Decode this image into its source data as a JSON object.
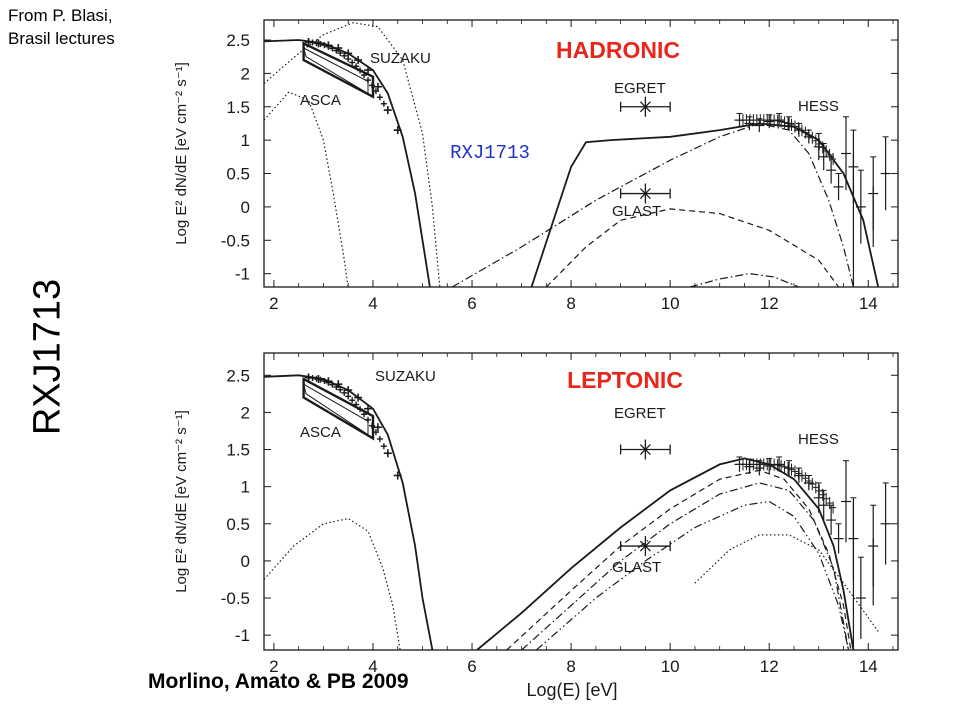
{
  "credit_top": "From P. Blasi,\nBrasil lectures",
  "side_title": "RXJ1713",
  "credit_bottom": "Morlino, Amato & PB 2009",
  "colors": {
    "title_red": "#e8261c",
    "label_blue": "#1f33c8",
    "ink": "#1a1a1a"
  },
  "chart_data": [
    {
      "type": "line",
      "title": "HADRONIC",
      "inset_label": "RXJ1713",
      "xlabel": "",
      "ylabel": "Log E² dN/dE  [eV cm⁻² s⁻¹]",
      "xlim": [
        1.8,
        14.6
      ],
      "ylim": [
        -1.2,
        2.8
      ],
      "x_ticks": [
        "2",
        "4",
        "6",
        "8",
        "10",
        "12",
        "14"
      ],
      "y_ticks": [
        "-1",
        "-0.5",
        "0",
        "0.5",
        "1",
        "1.5",
        "2",
        "2.5"
      ],
      "annotations": [
        "SUZAKU",
        "ASCA",
        "EGRET",
        "GLAST",
        "HESS"
      ],
      "series": [
        {
          "style": "solid",
          "points": [
            [
              1.8,
              2.48
            ],
            [
              2.5,
              2.5
            ],
            [
              3,
              2.45
            ],
            [
              3.5,
              2.3
            ],
            [
              4,
              2.05
            ],
            [
              4.3,
              1.7
            ],
            [
              4.6,
              1.05
            ],
            [
              4.85,
              0.2
            ],
            [
              5.0,
              -0.5
            ],
            [
              5.15,
              -1.2
            ]
          ]
        },
        {
          "style": "dotted",
          "points": [
            [
              1.8,
              1.3
            ],
            [
              2.3,
              1.72
            ],
            [
              2.7,
              1.6
            ],
            [
              3,
              1.0
            ],
            [
              3.2,
              0.2
            ],
            [
              3.4,
              -0.7
            ],
            [
              3.5,
              -1.2
            ]
          ]
        },
        {
          "style": "dotted",
          "points": [
            [
              1.8,
              1.85
            ],
            [
              2.5,
              2.3
            ],
            [
              3.0,
              2.58
            ],
            [
              3.6,
              2.76
            ],
            [
              4.1,
              2.7
            ],
            [
              4.6,
              2.2
            ],
            [
              5.0,
              1.1
            ],
            [
              5.2,
              0.0
            ],
            [
              5.35,
              -1.2
            ]
          ]
        },
        {
          "style": "solid",
          "points": [
            [
              7.2,
              -1.2
            ],
            [
              7.6,
              -0.3
            ],
            [
              8.0,
              0.6
            ],
            [
              8.3,
              0.97
            ],
            [
              8.8,
              1.0
            ],
            [
              10,
              1.05
            ],
            [
              11,
              1.15
            ],
            [
              11.8,
              1.25
            ],
            [
              12.5,
              1.2
            ],
            [
              13,
              1.0
            ],
            [
              13.5,
              0.5
            ],
            [
              13.9,
              -0.2
            ],
            [
              14.2,
              -1.2
            ]
          ]
        },
        {
          "style": "dashdot",
          "points": [
            [
              5.6,
              -1.2
            ],
            [
              7,
              -0.6
            ],
            [
              8.5,
              0.1
            ],
            [
              10,
              0.7
            ],
            [
              11,
              1.05
            ],
            [
              11.8,
              1.25
            ],
            [
              12.4,
              1.15
            ],
            [
              12.8,
              0.8
            ],
            [
              13.2,
              0.1
            ],
            [
              13.5,
              -0.6
            ],
            [
              13.7,
              -1.2
            ]
          ]
        },
        {
          "style": "dashed",
          "points": [
            [
              7.5,
              -1.2
            ],
            [
              8.3,
              -0.6
            ],
            [
              9,
              -0.2
            ],
            [
              10,
              -0.03
            ],
            [
              11,
              -0.1
            ],
            [
              12,
              -0.35
            ],
            [
              13,
              -0.8
            ],
            [
              13.4,
              -1.2
            ]
          ]
        },
        {
          "style": "dashdot",
          "points": [
            [
              10.4,
              -1.2
            ],
            [
              11,
              -1.08
            ],
            [
              11.6,
              -1.0
            ],
            [
              12.1,
              -1.05
            ],
            [
              12.6,
              -1.2
            ]
          ]
        }
      ],
      "boxes": [
        {
          "x": [
            2.6,
            4.0
          ],
          "y_top": [
            2.45,
            1.95
          ],
          "y_bottom": [
            2.2,
            1.65
          ]
        }
      ],
      "markers": [
        {
          "name": "EGRET",
          "x": 9.5,
          "y": 1.5,
          "xerr": 0.5
        },
        {
          "name": "GLAST",
          "x": 9.5,
          "y": 0.2,
          "xerr": 0.5
        }
      ],
      "data_points": {
        "suzaku": [
          [
            2.7,
            2.47
          ],
          [
            2.9,
            2.45
          ],
          [
            3.1,
            2.42
          ],
          [
            3.3,
            2.38
          ],
          [
            3.5,
            2.3
          ],
          [
            3.7,
            2.2
          ],
          [
            3.9,
            2.05
          ],
          [
            4.1,
            1.8
          ],
          [
            4.3,
            1.45
          ],
          [
            4.5,
            1.15
          ]
        ],
        "hess": [
          [
            11.4,
            1.3
          ],
          [
            11.6,
            1.25
          ],
          [
            11.8,
            1.22
          ],
          [
            12.0,
            1.28
          ],
          [
            12.2,
            1.3
          ],
          [
            12.4,
            1.25
          ],
          [
            12.6,
            1.15
          ],
          [
            12.8,
            1.05
          ],
          [
            13.0,
            0.9
          ],
          [
            13.1,
            0.75
          ],
          [
            13.25,
            0.55
          ],
          [
            13.4,
            0.3
          ],
          [
            13.55,
            0.8
          ],
          [
            13.7,
            0.6
          ],
          [
            13.85,
            0.0
          ],
          [
            14.1,
            0.2
          ],
          [
            14.35,
            0.5
          ]
        ]
      }
    },
    {
      "type": "line",
      "title": "LEPTONIC",
      "xlabel": "Log(E)  [eV]",
      "ylabel": "Log E² dN/dE  [eV cm⁻² s⁻¹]",
      "xlim": [
        1.8,
        14.6
      ],
      "ylim": [
        -1.2,
        2.8
      ],
      "x_ticks": [
        "2",
        "4",
        "6",
        "8",
        "10",
        "12",
        "14"
      ],
      "y_ticks": [
        "-1",
        "-0.5",
        "0",
        "0.5",
        "1",
        "1.5",
        "2",
        "2.5"
      ],
      "annotations": [
        "SUZAKU",
        "ASCA",
        "EGRET",
        "GLAST",
        "HESS"
      ],
      "series": [
        {
          "style": "solid",
          "points": [
            [
              1.8,
              2.48
            ],
            [
              2.5,
              2.5
            ],
            [
              3,
              2.45
            ],
            [
              3.5,
              2.3
            ],
            [
              4,
              2.05
            ],
            [
              4.3,
              1.7
            ],
            [
              4.6,
              1.05
            ],
            [
              4.85,
              0.2
            ],
            [
              5.0,
              -0.5
            ],
            [
              5.2,
              -1.2
            ]
          ]
        },
        {
          "style": "dotted",
          "points": [
            [
              1.8,
              -0.25
            ],
            [
              2.4,
              0.2
            ],
            [
              3.0,
              0.5
            ],
            [
              3.5,
              0.57
            ],
            [
              3.9,
              0.4
            ],
            [
              4.2,
              -0.1
            ],
            [
              4.4,
              -0.6
            ],
            [
              4.55,
              -1.2
            ]
          ]
        },
        {
          "style": "solid",
          "points": [
            [
              6.1,
              -1.2
            ],
            [
              7,
              -0.7
            ],
            [
              8,
              -0.1
            ],
            [
              9,
              0.45
            ],
            [
              10,
              0.95
            ],
            [
              11,
              1.3
            ],
            [
              11.5,
              1.38
            ],
            [
              12,
              1.3
            ],
            [
              12.5,
              1.1
            ],
            [
              13,
              0.7
            ],
            [
              13.3,
              0.2
            ],
            [
              13.5,
              -0.4
            ],
            [
              13.7,
              -1.2
            ]
          ]
        },
        {
          "style": "dashed",
          "points": [
            [
              6.7,
              -1.2
            ],
            [
              8,
              -0.4
            ],
            [
              9,
              0.2
            ],
            [
              10,
              0.7
            ],
            [
              11,
              1.1
            ],
            [
              11.8,
              1.22
            ],
            [
              12.3,
              1.1
            ],
            [
              12.8,
              0.7
            ],
            [
              13.2,
              0.1
            ],
            [
              13.5,
              -0.6
            ],
            [
              13.65,
              -1.2
            ]
          ]
        },
        {
          "style": "dashdot",
          "points": [
            [
              7.0,
              -1.2
            ],
            [
              8,
              -0.6
            ],
            [
              9,
              0.0
            ],
            [
              10,
              0.5
            ],
            [
              11,
              0.9
            ],
            [
              11.8,
              1.05
            ],
            [
              12.4,
              0.95
            ],
            [
              12.9,
              0.55
            ],
            [
              13.3,
              -0.1
            ],
            [
              13.6,
              -1.2
            ]
          ]
        },
        {
          "style": "dashdotdot",
          "points": [
            [
              7.3,
              -1.2
            ],
            [
              8.5,
              -0.5
            ],
            [
              9.5,
              0.0
            ],
            [
              10.5,
              0.45
            ],
            [
              11.5,
              0.75
            ],
            [
              12.0,
              0.8
            ],
            [
              12.5,
              0.6
            ],
            [
              13.0,
              0.1
            ],
            [
              13.4,
              -0.6
            ],
            [
              13.6,
              -1.2
            ]
          ]
        },
        {
          "style": "dotted",
          "points": [
            [
              10.5,
              -0.3
            ],
            [
              11.2,
              0.15
            ],
            [
              11.8,
              0.35
            ],
            [
              12.4,
              0.35
            ],
            [
              13.0,
              0.15
            ],
            [
              13.5,
              -0.3
            ],
            [
              14.2,
              -0.95
            ]
          ]
        }
      ],
      "boxes": [
        {
          "x": [
            2.6,
            4.0
          ],
          "y_top": [
            2.45,
            1.95
          ],
          "y_bottom": [
            2.2,
            1.65
          ]
        }
      ],
      "markers": [
        {
          "name": "EGRET",
          "x": 9.5,
          "y": 1.5,
          "xerr": 0.5
        },
        {
          "name": "GLAST",
          "x": 9.5,
          "y": 0.2,
          "xerr": 0.5
        }
      ],
      "data_points": {
        "suzaku": [
          [
            2.7,
            2.47
          ],
          [
            2.9,
            2.45
          ],
          [
            3.1,
            2.42
          ],
          [
            3.3,
            2.38
          ],
          [
            3.5,
            2.3
          ],
          [
            3.7,
            2.2
          ],
          [
            3.9,
            2.05
          ],
          [
            4.1,
            1.8
          ],
          [
            4.3,
            1.45
          ],
          [
            4.5,
            1.15
          ]
        ],
        "hess": [
          [
            11.4,
            1.3
          ],
          [
            11.6,
            1.27
          ],
          [
            11.8,
            1.25
          ],
          [
            12.0,
            1.28
          ],
          [
            12.2,
            1.3
          ],
          [
            12.4,
            1.25
          ],
          [
            12.6,
            1.15
          ],
          [
            12.8,
            1.05
          ],
          [
            13.0,
            0.85
          ],
          [
            13.1,
            0.75
          ],
          [
            13.25,
            0.55
          ],
          [
            13.4,
            0.3
          ],
          [
            13.55,
            0.8
          ],
          [
            13.7,
            0.3
          ],
          [
            13.85,
            -0.5
          ],
          [
            14.1,
            0.2
          ],
          [
            14.35,
            0.5
          ]
        ]
      }
    }
  ]
}
